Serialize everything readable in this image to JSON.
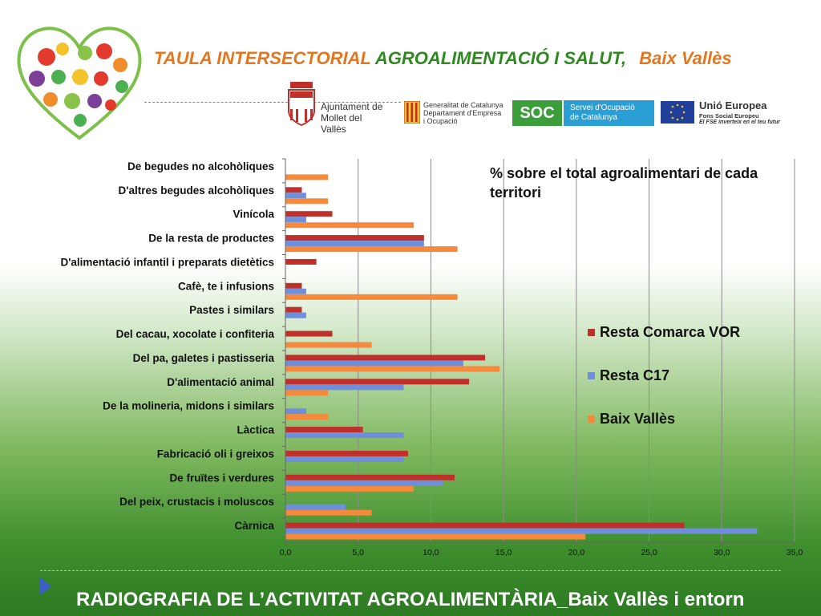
{
  "header": {
    "title_part1": "TAULA INTERSECTORIAL",
    "title_part2": "AGROALIMENTACIÓ I SALUT,",
    "title_part3": "Baix Vallès",
    "logo_mollet": "Ajuntament de\nMollet del Vallès",
    "logo_generalitat": "Generalitat de Catalunya\nDepartament d'Empresa\ni Ocupació",
    "logo_soc_short": "SOC",
    "logo_soc_long": "Servei d'Ocupació\nde Catalunya",
    "logo_eu_title": "Unió Europea",
    "logo_eu_sub1": "Fons Social Europeu",
    "logo_eu_sub2": "El FSE inverteix en el teu futur"
  },
  "chart_data": {
    "type": "bar",
    "orientation": "horizontal",
    "note": "% sobre el total agroalimentari de cada territori",
    "categories": [
      "De begudes no alcohòliques",
      "D'altres begudes alcohòliques",
      "Vinícola",
      "De la resta de productes",
      "D'alimentació infantil i preparats dietètics",
      "Cafè, te i infusions",
      "Pastes i similars",
      "Del cacau, xocolate i confiteria",
      "Del pa, galetes i pastisseria",
      "D'alimentació animal",
      "De la molineria, midons i similars",
      "Làctica",
      "Fabricació oli i greixos",
      "De fruïtes i verdures",
      "Del peix, crustacis i moluscos",
      "Càrnica"
    ],
    "series": [
      {
        "name": "Resta Comarca VOR",
        "color": "#c0302a",
        "values": [
          0,
          1.1,
          3.2,
          9.5,
          2.1,
          1.1,
          1.1,
          3.2,
          13.7,
          12.6,
          0,
          5.3,
          8.4,
          11.6,
          0,
          27.4
        ]
      },
      {
        "name": "Resta C17",
        "color": "#6f8fdc",
        "values": [
          0,
          1.4,
          1.4,
          9.5,
          0,
          1.4,
          1.4,
          0,
          12.2,
          8.1,
          1.4,
          8.1,
          8.1,
          10.8,
          4.1,
          32.4
        ]
      },
      {
        "name": "Baix Vallès",
        "color": "#f58a3c",
        "values": [
          2.9,
          2.9,
          8.8,
          11.8,
          0,
          11.8,
          0,
          5.9,
          14.7,
          2.9,
          2.9,
          0,
          0,
          8.8,
          5.9,
          20.6
        ]
      }
    ],
    "xlim": [
      0,
      35
    ],
    "xticks": [
      "0,0",
      "5,0",
      "10,0",
      "15,0",
      "20,0",
      "25,0",
      "30,0",
      "35,0"
    ],
    "grid": true,
    "legend_position": "right"
  },
  "footer": {
    "title": "RADIOGRAFIA DE L’ACTIVITAT AGROALIMENTÀRIA_Baix Vallès i entorn"
  }
}
